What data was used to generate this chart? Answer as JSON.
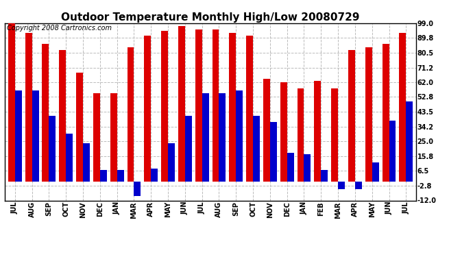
{
  "title": "Outdoor Temperature Monthly High/Low 20080729",
  "copyright": "Copyright 2008 Cartronics.com",
  "months": [
    "JUL",
    "AUG",
    "SEP",
    "OCT",
    "NOV",
    "DEC",
    "JAN",
    "MAR",
    "APR",
    "MAY",
    "JUN",
    "JUL",
    "AUG",
    "SEP",
    "OCT",
    "NOV",
    "DEC",
    "JAN",
    "FEB",
    "MAR",
    "APR",
    "MAY",
    "JUN",
    "JUL"
  ],
  "highs": [
    99.0,
    93.0,
    86.0,
    82.0,
    68.0,
    55.0,
    55.0,
    84.0,
    91.0,
    94.0,
    97.0,
    95.0,
    95.0,
    93.0,
    91.0,
    64.0,
    62.0,
    58.0,
    63.0,
    58.0,
    82.0,
    84.0,
    86.0,
    93.0
  ],
  "lows": [
    57.0,
    57.0,
    41.0,
    30.0,
    24.0,
    7.0,
    7.0,
    -9.0,
    8.0,
    24.0,
    41.0,
    55.0,
    55.0,
    57.0,
    41.0,
    37.0,
    18.0,
    17.0,
    7.0,
    -5.0,
    -5.0,
    12.0,
    38.0,
    50.0
  ],
  "bar_color_high": "#dd0000",
  "bar_color_low": "#0000cc",
  "background_color": "#ffffff",
  "grid_color": "#bbbbbb",
  "ylim": [
    -12.0,
    99.0
  ],
  "yticks": [
    99.0,
    89.8,
    80.5,
    71.2,
    62.0,
    52.8,
    43.5,
    34.2,
    25.0,
    15.8,
    6.5,
    -2.8,
    -12.0
  ],
  "title_fontsize": 11,
  "copyright_fontsize": 7,
  "tick_fontsize": 7,
  "figwidth": 6.9,
  "figheight": 3.75,
  "dpi": 100
}
